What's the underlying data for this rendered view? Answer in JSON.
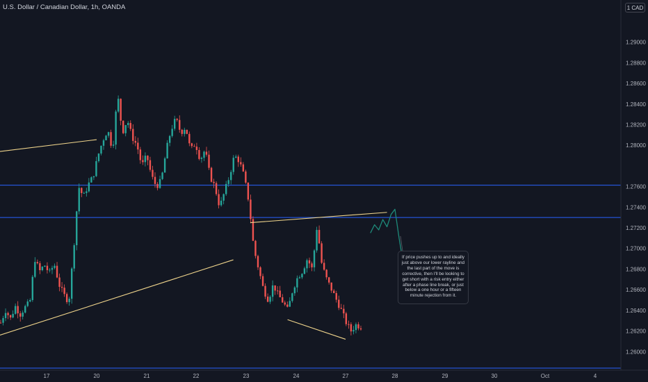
{
  "header": {
    "title": "U.S. Dollar / Canadian Dollar, 1h, OANDA",
    "currency_badge": "1 CAD"
  },
  "annotation": {
    "text": "If price pushes up to and ideally just above our lower rayline and the last part of the move is corrective, then I'll be looking to get short with a risk entry either after a phase line break, or just below a one hour or a fifteen minute rejection from it."
  },
  "colors": {
    "background": "#131722",
    "up": "#26a69a",
    "down": "#ef5350",
    "trendline": "#f0d58c",
    "horizontal": "#2962ff",
    "sketch": "#1e8a7a",
    "axis_text": "#b2b5be"
  },
  "chart_data": {
    "type": "candlestick",
    "title": "U.S. Dollar / Canadian Dollar, 1h, OANDA",
    "ylim": [
      1.2582,
      1.2924
    ],
    "y_ticks": [
      "1.29000",
      "1.28800",
      "1.28600",
      "1.28400",
      "1.28200",
      "1.28000",
      "1.27600",
      "1.27400",
      "1.27200",
      "1.27000",
      "1.26800",
      "1.26600",
      "1.26400",
      "1.26200",
      "1.26000"
    ],
    "x_ticks": [
      "17",
      "20",
      "21",
      "22",
      "23",
      "24",
      "27",
      "28",
      "29",
      "30",
      "Oct",
      "4"
    ],
    "horizontal_levels": [
      1.27613,
      1.273,
      1.2584
    ],
    "trendlines": [
      {
        "from": [
          "16 00:00",
          1.2794
        ],
        "to": [
          "20 00:00",
          1.28055
        ]
      },
      {
        "from": [
          "16 00:00",
          1.2616
        ],
        "to": [
          "22 18:00",
          1.2689
        ]
      },
      {
        "from": [
          "23 02:00",
          1.2725
        ],
        "to": [
          "27 20:00",
          1.2735
        ]
      },
      {
        "from": [
          "23 20:00",
          1.2631
        ],
        "to": [
          "27 00:00",
          1.2612
        ]
      }
    ],
    "projection": {
      "path": [
        [
          "27 12:00",
          1.2715
        ],
        [
          "27 14:00",
          1.2723
        ],
        [
          "27 16:00",
          1.2718
        ],
        [
          "27 18:00",
          1.2728
        ],
        [
          "27 20:00",
          1.2721
        ],
        [
          "27 22:00",
          1.2733
        ],
        [
          "28 00:00",
          1.2738
        ],
        [
          "28 02:00",
          1.271
        ],
        [
          "28 04:00",
          1.2686
        ]
      ],
      "direction": "down"
    },
    "candles_summary": {
      "open": 1.2628,
      "waypoints": [
        1.2628,
        1.264,
        1.2632,
        1.2644,
        1.2636,
        1.2643,
        1.2648,
        1.269,
        1.2678,
        1.2684,
        1.2676,
        1.2685,
        1.2665,
        1.2655,
        1.2648,
        1.27,
        1.276,
        1.275,
        1.2762,
        1.277,
        1.279,
        1.2805,
        1.2815,
        1.2795,
        1.285,
        1.2812,
        1.2825,
        1.2808,
        1.28,
        1.278,
        1.279,
        1.277,
        1.276,
        1.2766,
        1.2795,
        1.2815,
        1.2826,
        1.2812,
        1.2818,
        1.2795,
        1.2802,
        1.2786,
        1.2796,
        1.277,
        1.276,
        1.274,
        1.2755,
        1.277,
        1.279,
        1.2785,
        1.277,
        1.2745,
        1.27,
        1.268,
        1.266,
        1.265,
        1.2665,
        1.2655,
        1.2648,
        1.264,
        1.266,
        1.2672,
        1.2678,
        1.269,
        1.268,
        1.2722,
        1.2684,
        1.267,
        1.266,
        1.265,
        1.264,
        1.2628,
        1.262,
        1.2626,
        1.2624
      ],
      "close": 1.2624
    }
  }
}
